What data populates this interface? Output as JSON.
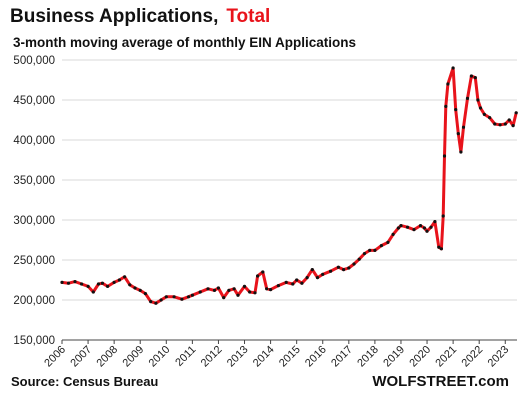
{
  "header": {
    "title": "Business Applications,",
    "title_accent": "Total",
    "subtitle": "3-month moving average of monthly EIN Applications"
  },
  "footer": {
    "source": "Source: Census Bureau",
    "brand": "WOLFSTREET.com"
  },
  "colors": {
    "line": "#e8131b",
    "markers": "#111111",
    "grid": "#d9d9d9",
    "title_accent": "#e8131b"
  },
  "chart_data": {
    "type": "line",
    "title": "Business Applications, Total",
    "subtitle": "3-month moving average of monthly EIN Applications",
    "ylim": [
      150000,
      500000
    ],
    "yticks": [
      150000,
      200000,
      250000,
      300000,
      350000,
      400000,
      450000,
      500000
    ],
    "ytick_labels": [
      "150,000",
      "200,000",
      "250,000",
      "300,000",
      "350,000",
      "400,000",
      "450,000",
      "500,000"
    ],
    "xticks": [
      2006,
      2007,
      2008,
      2009,
      2010,
      2011,
      2012,
      2013,
      2014,
      2015,
      2016,
      2017,
      2018,
      2019,
      2020,
      2021,
      2022,
      2023
    ],
    "xtick_labels": [
      "2006",
      "2007",
      "2008",
      "2009",
      "2010",
      "2011",
      "2012",
      "2013",
      "2014",
      "2015",
      "2016",
      "2017",
      "2018",
      "2019",
      "2020",
      "2021",
      "2022",
      "2023"
    ],
    "xlim": [
      2006.0,
      2023.45
    ],
    "grid": "horizontal",
    "series": [
      {
        "values": [
          [
            2006.0,
            222000
          ],
          [
            2006.25,
            221000
          ],
          [
            2006.5,
            223000
          ],
          [
            2006.75,
            220000
          ],
          [
            2007.0,
            217000
          ],
          [
            2007.2,
            210000
          ],
          [
            2007.4,
            220000
          ],
          [
            2007.55,
            221000
          ],
          [
            2007.75,
            217000
          ],
          [
            2008.0,
            222000
          ],
          [
            2008.2,
            225000
          ],
          [
            2008.4,
            229000
          ],
          [
            2008.6,
            219000
          ],
          [
            2008.8,
            215000
          ],
          [
            2009.0,
            212000
          ],
          [
            2009.2,
            208000
          ],
          [
            2009.4,
            198000
          ],
          [
            2009.6,
            196000
          ],
          [
            2009.8,
            200000
          ],
          [
            2010.0,
            204000
          ],
          [
            2010.3,
            204000
          ],
          [
            2010.6,
            201000
          ],
          [
            2010.85,
            204000
          ],
          [
            2011.0,
            206000
          ],
          [
            2011.3,
            210000
          ],
          [
            2011.6,
            214000
          ],
          [
            2011.85,
            212000
          ],
          [
            2012.0,
            215000
          ],
          [
            2012.2,
            203000
          ],
          [
            2012.4,
            212000
          ],
          [
            2012.6,
            214000
          ],
          [
            2012.75,
            206000
          ],
          [
            2013.0,
            217000
          ],
          [
            2013.2,
            210000
          ],
          [
            2013.4,
            209000
          ],
          [
            2013.5,
            230000
          ],
          [
            2013.7,
            235000
          ],
          [
            2013.85,
            214000
          ],
          [
            2014.0,
            213000
          ],
          [
            2014.3,
            218000
          ],
          [
            2014.6,
            222000
          ],
          [
            2014.85,
            220000
          ],
          [
            2015.0,
            225000
          ],
          [
            2015.2,
            221000
          ],
          [
            2015.4,
            228000
          ],
          [
            2015.6,
            238000
          ],
          [
            2015.8,
            228000
          ],
          [
            2016.0,
            232000
          ],
          [
            2016.3,
            236000
          ],
          [
            2016.6,
            241000
          ],
          [
            2016.8,
            238000
          ],
          [
            2017.0,
            240000
          ],
          [
            2017.2,
            245000
          ],
          [
            2017.4,
            251000
          ],
          [
            2017.6,
            258000
          ],
          [
            2017.8,
            262000
          ],
          [
            2018.0,
            262000
          ],
          [
            2018.25,
            268000
          ],
          [
            2018.5,
            272000
          ],
          [
            2018.7,
            282000
          ],
          [
            2018.9,
            290000
          ],
          [
            2019.0,
            293000
          ],
          [
            2019.25,
            291000
          ],
          [
            2019.5,
            288000
          ],
          [
            2019.75,
            293000
          ],
          [
            2019.9,
            290000
          ],
          [
            2020.0,
            286000
          ],
          [
            2020.15,
            291000
          ],
          [
            2020.3,
            298000
          ],
          [
            2020.45,
            266000
          ],
          [
            2020.55,
            264000
          ],
          [
            2020.62,
            305000
          ],
          [
            2020.67,
            380000
          ],
          [
            2020.72,
            442000
          ],
          [
            2020.8,
            470000
          ],
          [
            2021.0,
            490000
          ],
          [
            2021.1,
            438000
          ],
          [
            2021.2,
            408000
          ],
          [
            2021.3,
            385000
          ],
          [
            2021.4,
            416000
          ],
          [
            2021.55,
            452000
          ],
          [
            2021.7,
            480000
          ],
          [
            2021.85,
            478000
          ],
          [
            2021.95,
            450000
          ],
          [
            2022.05,
            440000
          ],
          [
            2022.2,
            432000
          ],
          [
            2022.4,
            428000
          ],
          [
            2022.6,
            420000
          ],
          [
            2022.8,
            419000
          ],
          [
            2023.0,
            420000
          ],
          [
            2023.15,
            425000
          ],
          [
            2023.3,
            418000
          ],
          [
            2023.42,
            434000
          ]
        ]
      }
    ]
  }
}
